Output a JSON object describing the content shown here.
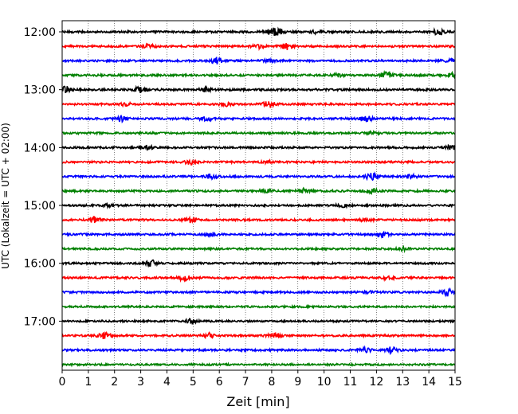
{
  "chart_data": {
    "type": "line",
    "title": "",
    "xlabel": "Zeit  [min]",
    "ylabel": "UTC (Lokalzeit = UTC + 02:00)",
    "xlim": [
      0,
      15
    ],
    "x_ticks": [
      "0",
      "1",
      "2",
      "3",
      "4",
      "5",
      "6",
      "7",
      "8",
      "9",
      "10",
      "11",
      "12",
      "13",
      "14",
      "15"
    ],
    "y_ticks": [
      "12:00",
      "13:00",
      "14:00",
      "15:00",
      "16:00",
      "17:00"
    ],
    "grid": "x-dotted",
    "colors": [
      "#000000",
      "#ff0000",
      "#0000ff",
      "#008000"
    ],
    "traces": [
      {
        "start": "12:00",
        "color": "#000000",
        "bursts": [
          [
            8.0,
            0.9
          ],
          [
            8.3,
            0.7
          ],
          [
            9.7,
            0.4
          ],
          [
            14.4,
            1.0
          ]
        ],
        "noise": 0.2
      },
      {
        "start": "12:15",
        "color": "#ff0000",
        "bursts": [
          [
            3.3,
            0.5
          ],
          [
            7.5,
            0.6
          ],
          [
            8.6,
            1.0
          ]
        ],
        "noise": 0.18
      },
      {
        "start": "12:30",
        "color": "#0000ff",
        "bursts": [
          [
            5.9,
            1.0
          ],
          [
            7.9,
            0.3
          ],
          [
            14.8,
            0.4
          ]
        ],
        "noise": 0.18
      },
      {
        "start": "12:45",
        "color": "#008000",
        "bursts": [
          [
            10.5,
            0.4
          ],
          [
            12.4,
            0.9
          ],
          [
            14.9,
            1.0
          ]
        ],
        "noise": 0.2
      },
      {
        "start": "13:00",
        "color": "#000000",
        "bursts": [
          [
            0.1,
            1.0
          ],
          [
            3.0,
            0.9
          ],
          [
            5.5,
            0.6
          ]
        ],
        "noise": 0.22
      },
      {
        "start": "13:15",
        "color": "#ff0000",
        "bursts": [
          [
            2.4,
            0.5
          ],
          [
            6.2,
            0.6
          ],
          [
            7.9,
            1.0
          ]
        ],
        "noise": 0.18
      },
      {
        "start": "13:30",
        "color": "#0000ff",
        "bursts": [
          [
            2.3,
            1.0
          ],
          [
            5.5,
            0.6
          ],
          [
            11.6,
            1.0
          ]
        ],
        "noise": 0.18
      },
      {
        "start": "13:45",
        "color": "#008000",
        "bursts": [
          [
            11.8,
            0.4
          ]
        ],
        "noise": 0.16
      },
      {
        "start": "14:00",
        "color": "#000000",
        "bursts": [
          [
            3.2,
            0.8
          ],
          [
            14.9,
            0.8
          ]
        ],
        "noise": 0.16
      },
      {
        "start": "14:15",
        "color": "#ff0000",
        "bursts": [
          [
            4.9,
            0.7
          ],
          [
            7.8,
            0.3
          ]
        ],
        "noise": 0.18
      },
      {
        "start": "14:30",
        "color": "#0000ff",
        "bursts": [
          [
            5.7,
            0.7
          ],
          [
            11.8,
            1.0
          ],
          [
            13.3,
            0.6
          ]
        ],
        "noise": 0.18
      },
      {
        "start": "14:45",
        "color": "#008000",
        "bursts": [
          [
            7.8,
            0.6
          ],
          [
            9.2,
            0.7
          ],
          [
            11.8,
            0.8
          ]
        ],
        "noise": 0.18
      },
      {
        "start": "15:00",
        "color": "#000000",
        "bursts": [
          [
            1.7,
            0.5
          ],
          [
            10.7,
            0.5
          ]
        ],
        "noise": 0.16
      },
      {
        "start": "15:15",
        "color": "#ff0000",
        "bursts": [
          [
            1.2,
            0.8
          ],
          [
            4.9,
            0.7
          ],
          [
            11.6,
            0.4
          ]
        ],
        "noise": 0.18
      },
      {
        "start": "15:30",
        "color": "#0000ff",
        "bursts": [
          [
            5.7,
            0.6
          ],
          [
            12.2,
            1.0
          ]
        ],
        "noise": 0.18
      },
      {
        "start": "15:45",
        "color": "#008000",
        "bursts": [
          [
            13.0,
            0.5
          ]
        ],
        "noise": 0.16
      },
      {
        "start": "16:00",
        "color": "#000000",
        "bursts": [
          [
            3.4,
            0.9
          ]
        ],
        "noise": 0.14
      },
      {
        "start": "16:15",
        "color": "#ff0000",
        "bursts": [
          [
            4.7,
            1.0
          ],
          [
            12.4,
            0.4
          ]
        ],
        "noise": 0.18
      },
      {
        "start": "16:30",
        "color": "#0000ff",
        "bursts": [
          [
            11.7,
            0.4
          ],
          [
            14.7,
            1.0
          ]
        ],
        "noise": 0.18
      },
      {
        "start": "16:45",
        "color": "#008000",
        "bursts": [],
        "noise": 0.14
      },
      {
        "start": "17:00",
        "color": "#000000",
        "bursts": [
          [
            4.9,
            0.6
          ]
        ],
        "noise": 0.14
      },
      {
        "start": "17:15",
        "color": "#ff0000",
        "bursts": [
          [
            1.6,
            0.9
          ],
          [
            5.6,
            0.8
          ],
          [
            8.1,
            0.8
          ]
        ],
        "noise": 0.18
      },
      {
        "start": "17:30",
        "color": "#0000ff",
        "bursts": [
          [
            11.6,
            0.6
          ],
          [
            12.6,
            1.0
          ]
        ],
        "noise": 0.18
      },
      {
        "start": "17:45",
        "color": "#008000",
        "bursts": [],
        "noise": 0.14
      }
    ]
  }
}
